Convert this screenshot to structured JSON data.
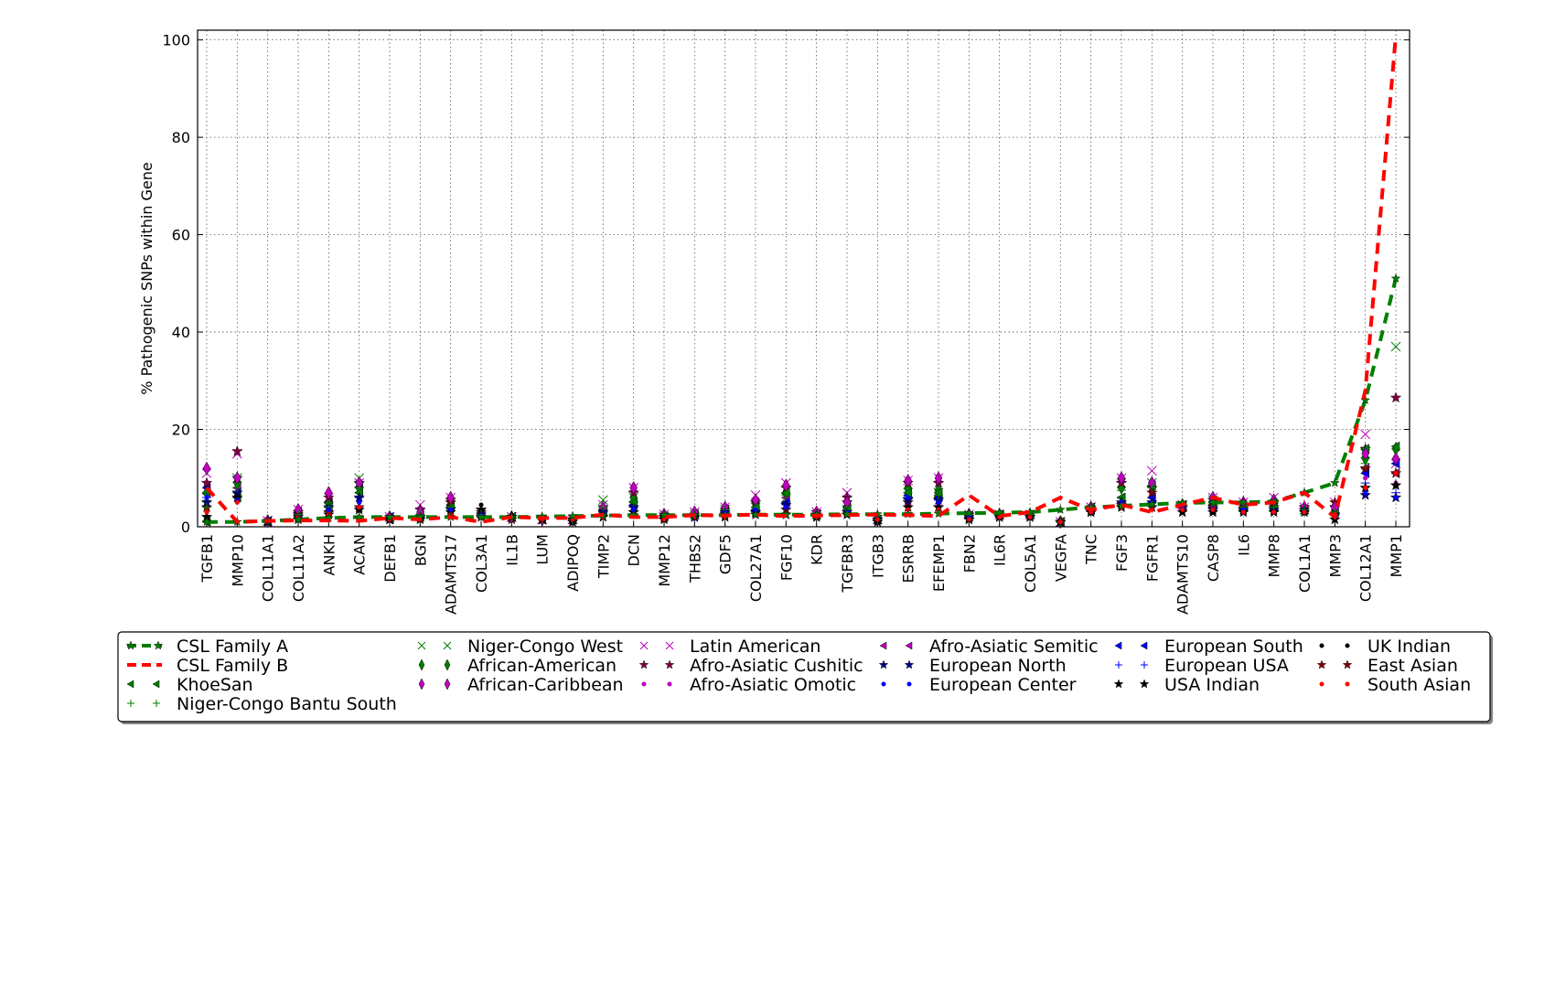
{
  "chart_data": {
    "type": "line",
    "ylabel": "% Pathogenic SNPs within Gene",
    "xlabel": "",
    "title": "",
    "ylim": [
      0,
      102
    ],
    "yticks": [
      0,
      20,
      40,
      60,
      80,
      100
    ],
    "grid": true,
    "legend_position": "bottom",
    "categories": [
      "TGFB1",
      "MMP10",
      "COL11A1",
      "COL11A2",
      "ANKH",
      "ACAN",
      "DEFB1",
      "BGN",
      "ADAMTS17",
      "COL3A1",
      "IL1B",
      "LUM",
      "ADIPOQ",
      "TIMP2",
      "DCN",
      "MMP12",
      "THBS2",
      "GDF5",
      "COL27A1",
      "FGF10",
      "KDR",
      "TGFBR3",
      "ITGB3",
      "ESRRB",
      "EFEMP1",
      "FBN2",
      "IL6R",
      "COL5A1",
      "VEGFA",
      "TNC",
      "FGF3",
      "FGFR1",
      "ADAMTS10",
      "CASP8",
      "IL6",
      "MMP8",
      "COL1A1",
      "MMP3",
      "COL12A1",
      "MMP1"
    ],
    "series": [
      {
        "name": "CSL Family A",
        "kind": "line",
        "color": "#007f00",
        "marker": "star",
        "values": [
          1,
          1,
          1.2,
          1.5,
          1.8,
          2,
          2,
          2,
          2,
          2,
          2,
          2.1,
          2.2,
          2.3,
          2.4,
          2.4,
          2.4,
          2.4,
          2.5,
          2.5,
          2.5,
          2.6,
          2.6,
          2.6,
          2.7,
          2.8,
          2.9,
          3,
          3.5,
          4,
          4.3,
          4.6,
          4.9,
          5,
          5,
          5.2,
          7,
          9,
          26,
          51
        ]
      },
      {
        "name": "CSL Family B",
        "kind": "line",
        "color": "#ff0000",
        "marker": "none",
        "values": [
          8,
          1,
          1.2,
          1.3,
          1.3,
          1.2,
          1.8,
          1.5,
          2,
          1,
          2,
          1.8,
          1.8,
          2.5,
          2,
          2,
          2.4,
          2.3,
          2.5,
          2.2,
          2.3,
          2.4,
          2.5,
          2.4,
          2.2,
          6.5,
          2.2,
          3,
          6,
          3.5,
          4.5,
          3,
          4.5,
          6,
          4.5,
          5,
          7,
          2,
          28,
          101
        ]
      },
      {
        "name": "Niger-Congo West",
        "kind": "scatter",
        "color": "#007f00",
        "marker": "x",
        "values": [
          6,
          10,
          1.2,
          2.5,
          4,
          10,
          2,
          3,
          5,
          3,
          2,
          1.5,
          1.5,
          5.5,
          6,
          2.5,
          2.5,
          3.5,
          4,
          6,
          2.5,
          3.5,
          1.5,
          7,
          7,
          2.5,
          2.5,
          2.5,
          1,
          4,
          9,
          9,
          4.5,
          5.5,
          4,
          4,
          3.5,
          3.5,
          15,
          37
        ]
      },
      {
        "name": "Latin American",
        "kind": "scatter",
        "color": "#bf00bf",
        "marker": "x",
        "values": [
          11,
          15,
          1.2,
          3.5,
          6,
          9,
          2,
          4.5,
          6,
          3,
          2,
          1.5,
          1.5,
          4.5,
          8,
          2.5,
          3,
          4,
          6.5,
          9,
          3,
          7,
          1.5,
          9.5,
          10,
          2.5,
          2.5,
          2.5,
          1,
          4,
          10,
          11.5,
          4.5,
          6,
          5,
          6,
          4,
          5,
          19,
          13
        ]
      },
      {
        "name": "Afro-Asiatic Semitic",
        "kind": "scatter",
        "color": "#bf00bf",
        "marker": "tri-left",
        "values": [
          7,
          8,
          1,
          3,
          5,
          8,
          1.5,
          2.5,
          4,
          2.5,
          2,
          1.5,
          1.5,
          3.5,
          5,
          2,
          2.5,
          3,
          4,
          6,
          2.5,
          4,
          1.5,
          7,
          6.5,
          2,
          2.5,
          2.5,
          1,
          3.5,
          6,
          6,
          4,
          4.5,
          4,
          4,
          3.5,
          3,
          12,
          11
        ]
      },
      {
        "name": "European South",
        "kind": "scatter",
        "color": "#0000ff",
        "marker": "tri-left",
        "values": [
          8,
          7,
          1.2,
          2.5,
          5,
          7,
          2,
          2.5,
          4.5,
          2.5,
          2,
          1.5,
          1.5,
          3,
          4.5,
          2,
          2.5,
          3,
          3.5,
          5,
          2.5,
          3.5,
          1.5,
          6.5,
          6,
          2,
          2.5,
          2.5,
          1,
          3.5,
          6,
          6,
          4,
          4,
          4,
          4,
          3.5,
          3,
          11,
          13
        ]
      },
      {
        "name": "UK Indian",
        "kind": "scatter",
        "color": "#000000",
        "marker": "dot",
        "values": [
          3,
          7,
          1,
          2,
          3.5,
          5,
          1.5,
          2,
          3.5,
          4.5,
          2,
          1.5,
          1.5,
          2.5,
          3.5,
          2,
          2,
          2.5,
          3,
          3,
          2.5,
          3,
          1.5,
          5,
          4.5,
          2,
          2,
          2,
          1,
          3,
          4.5,
          4.5,
          3.5,
          4,
          3.5,
          3.5,
          3,
          2,
          10,
          6
        ]
      },
      {
        "name": "African-American",
        "kind": "scatter",
        "color": "#007f00",
        "marker": "diamond",
        "values": [
          7,
          9,
          1.2,
          3,
          5,
          8,
          2,
          2.5,
          4.5,
          3,
          2,
          1.5,
          1.5,
          3.5,
          6,
          2.5,
          2.5,
          3.5,
          5,
          7,
          2.5,
          4,
          1.5,
          8,
          7.5,
          2.5,
          2.5,
          2.5,
          1,
          3.5,
          8,
          9,
          4,
          5,
          4.5,
          4.5,
          3.5,
          3.5,
          14,
          16
        ]
      },
      {
        "name": "Afro-Asiatic Cushitic",
        "kind": "scatter",
        "color": "#7f003f",
        "marker": "star",
        "values": [
          9,
          15.5,
          1.2,
          3,
          6,
          9,
          2,
          3.5,
          5.5,
          3,
          2,
          1.5,
          1.5,
          4,
          7,
          2.5,
          2.5,
          3.5,
          5,
          8,
          3,
          6,
          1.5,
          9,
          9,
          2.5,
          2.5,
          2.5,
          1,
          4,
          9,
          8,
          4,
          5.5,
          4.5,
          5,
          4,
          4,
          16,
          26.5
        ]
      },
      {
        "name": "European USA",
        "kind": "scatter",
        "color": "#0000ff",
        "marker": "plus",
        "values": [
          6,
          6,
          1,
          2.5,
          4,
          6,
          1.5,
          2,
          4,
          2.5,
          2,
          1.5,
          1.5,
          3,
          4,
          2,
          2,
          3,
          3.5,
          4.5,
          2.5,
          3.5,
          1.5,
          6,
          5.5,
          2,
          2,
          2,
          1,
          3.5,
          5,
          5,
          4,
          4,
          3.5,
          3.5,
          3.5,
          2.5,
          9,
          7
        ]
      },
      {
        "name": "East Asian",
        "kind": "scatter",
        "color": "#7f0000",
        "marker": "star",
        "values": [
          4,
          10,
          1.2,
          2.5,
          3,
          4,
          1.5,
          2,
          5,
          2,
          1.5,
          1.5,
          1.5,
          3,
          3,
          2,
          2,
          2.5,
          3,
          3.5,
          2,
          5,
          1.5,
          5,
          4,
          1.5,
          2,
          2,
          1,
          3,
          4.5,
          7,
          4,
          4,
          3.5,
          4,
          4,
          5,
          12,
          11
        ]
      },
      {
        "name": "KhoeSan",
        "kind": "scatter",
        "color": "#007f00",
        "marker": "tri-left",
        "values": [
          1,
          6,
          1,
          2,
          4,
          7,
          1.5,
          2,
          4,
          2,
          2,
          1.5,
          1.5,
          3,
          5,
          2,
          2.5,
          3.5,
          4,
          7,
          2.5,
          4,
          1.5,
          7,
          7,
          2,
          2.5,
          2.5,
          1,
          4,
          6,
          8.5,
          4.5,
          5,
          4,
          4,
          3.5,
          3,
          16,
          16.5
        ]
      },
      {
        "name": "African-Caribbean",
        "kind": "scatter",
        "color": "#bf00bf",
        "marker": "diamond",
        "values": [
          12,
          10,
          1.2,
          3.5,
          7,
          9,
          2,
          3,
          6,
          3,
          2,
          1.5,
          1.5,
          4,
          8,
          2.5,
          3,
          4,
          5.5,
          8.5,
          3,
          5,
          1.5,
          9.5,
          10,
          2.5,
          2.5,
          2.5,
          1,
          4,
          10,
          9,
          4.5,
          6,
          5,
          5.5,
          4,
          4,
          15,
          14
        ]
      },
      {
        "name": "Afro-Asiatic Omotic",
        "kind": "scatter",
        "color": "#bf00bf",
        "marker": "dot",
        "values": [
          5,
          5,
          1.2,
          2,
          3,
          5,
          1.5,
          2,
          3,
          2.5,
          2,
          1.5,
          1.5,
          2.5,
          3.5,
          2,
          2,
          2.5,
          3,
          4,
          2.5,
          3,
          1.5,
          4.5,
          4.5,
          2,
          2,
          2,
          1,
          3,
          5,
          5,
          3.5,
          4,
          3.5,
          3.5,
          3,
          2.5,
          10,
          9
        ]
      },
      {
        "name": "European North",
        "kind": "scatter",
        "color": "#00007f",
        "marker": "star",
        "values": [
          5,
          7,
          1,
          2,
          4,
          6,
          1.5,
          2,
          3.5,
          2.5,
          2,
          1.5,
          1.5,
          3,
          4,
          2,
          2,
          3,
          3,
          4.5,
          2.5,
          3,
          1.5,
          5.5,
          5.5,
          2,
          2,
          2,
          1,
          3.5,
          5,
          5,
          4,
          3.5,
          3.5,
          3.5,
          3.5,
          2.5,
          6.5,
          6
        ]
      },
      {
        "name": "USA Indian",
        "kind": "scatter",
        "color": "#000000",
        "marker": "star",
        "values": [
          2,
          6,
          1,
          1.5,
          2.5,
          3.5,
          1.5,
          1.5,
          3,
          3.5,
          2,
          1.5,
          1,
          2,
          3,
          1.5,
          2,
          2,
          2.5,
          2.5,
          2,
          2.5,
          1,
          4,
          4,
          1.5,
          2,
          2,
          1,
          3,
          4,
          4,
          3,
          3,
          3,
          3,
          3,
          1.5,
          8,
          8.5
        ]
      },
      {
        "name": "Niger-Congo Bantu South",
        "kind": "scatter",
        "color": "#007f00",
        "marker": "plus",
        "values": [
          4,
          8,
          1.2,
          2.5,
          4,
          8,
          2,
          2.5,
          4,
          2.5,
          2,
          1.5,
          1.5,
          4,
          5,
          2.5,
          2.5,
          3.5,
          4,
          6.5,
          2.5,
          3.5,
          1.5,
          7,
          6.5,
          2.5,
          2.5,
          2.5,
          1,
          4,
          7.5,
          8,
          4.5,
          5,
          4,
          4,
          3.5,
          3,
          13,
          16
        ]
      },
      {
        "name": "European Center",
        "kind": "scatter",
        "color": "#0000ff",
        "marker": "dot",
        "values": [
          6,
          5.5,
          1,
          2,
          3.5,
          5,
          1.5,
          2,
          3.5,
          2.5,
          2,
          1.5,
          1.5,
          2.5,
          3.5,
          2,
          2,
          3,
          3.5,
          4,
          2.5,
          3,
          1.5,
          6,
          5,
          2,
          2,
          2,
          1,
          3.5,
          5,
          5,
          4,
          3.5,
          3.5,
          3,
          3,
          2,
          7,
          6
        ]
      },
      {
        "name": "South Asian",
        "kind": "scatter",
        "color": "#ff0000",
        "marker": "dot",
        "values": [
          3,
          5,
          1.2,
          2,
          2.5,
          4,
          1.5,
          1.5,
          2.5,
          2,
          2,
          1.5,
          1.5,
          2,
          2.5,
          1.5,
          2,
          2,
          2.5,
          2.5,
          2,
          2.5,
          1.5,
          3.5,
          3.5,
          1.5,
          2,
          2,
          1,
          3,
          4,
          3.5,
          3.5,
          3.5,
          3,
          3,
          3,
          2.5,
          8,
          11
        ]
      }
    ]
  }
}
